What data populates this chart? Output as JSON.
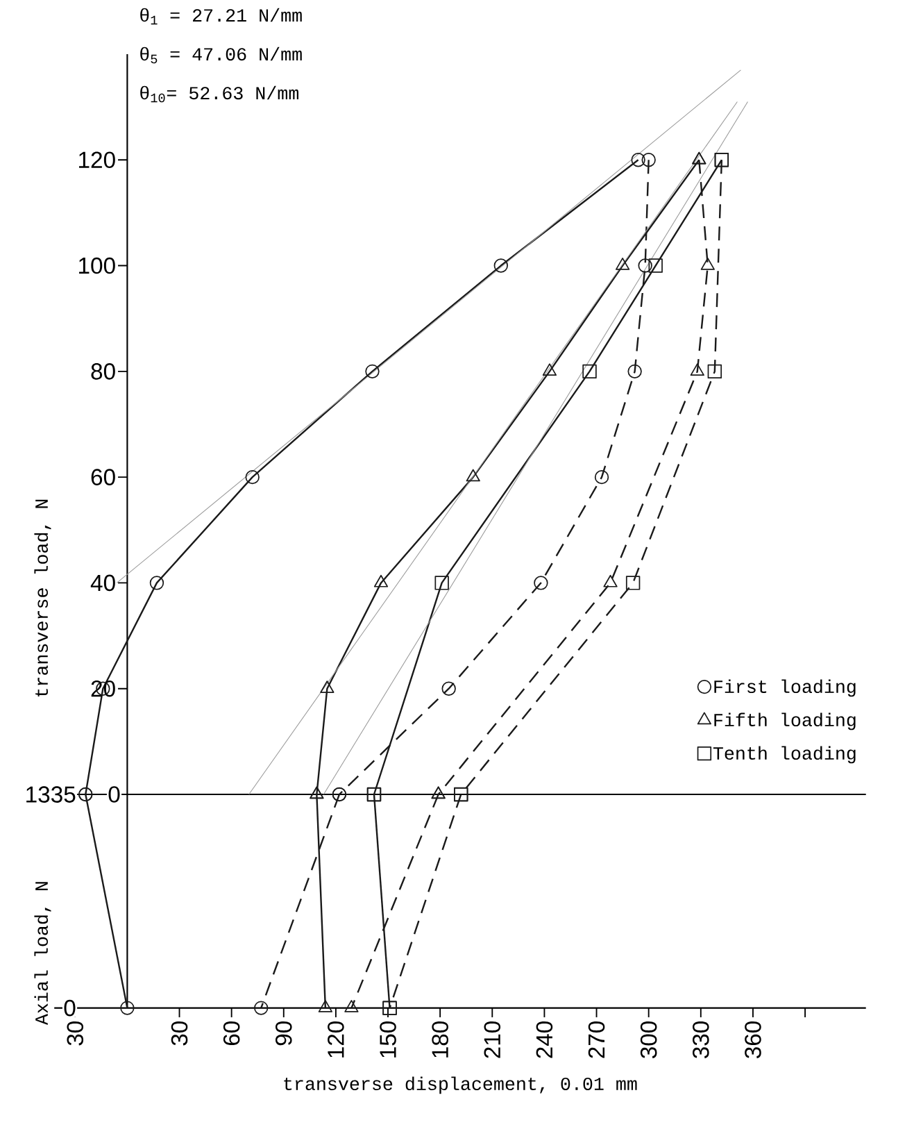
{
  "chart_data": [
    {
      "type": "line",
      "ylabel": "transverse load, N",
      "legend": "bottom right",
      "tick_labels": "y",
      "annotations": [
        "θ$_{1}$ = 27.21 N/mm",
        "θ$_{5}$ = 47.06 N/mm",
        "θ$_{10}$= 52.63 N/mm"
      ],
      "xlim": [
        -42,
        425
      ],
      "ylim": [
        0,
        140
      ],
      "yticks": [
        0,
        20,
        40,
        60,
        80,
        100,
        120
      ],
      "series": [
        {
          "name": "First loading",
          "color": "#1a1a1a",
          "marker": "circle",
          "line_style": "solid",
          "x": [
            -24,
            -14,
            17,
            72,
            141,
            215,
            294
          ],
          "values": [
            0,
            20,
            40,
            60,
            80,
            100,
            120
          ]
        },
        {
          "color": "#1a1a1a",
          "marker": "circle",
          "line_style": "dashed",
          "x": [
            300,
            298,
            292,
            273,
            238,
            185,
            122
          ],
          "values": [
            120,
            100,
            80,
            60,
            40,
            20,
            0
          ]
        },
        {
          "name": "Fifth loading",
          "color": "#1a1a1a",
          "marker": "triangle",
          "line_style": "solid",
          "x": [
            109,
            115,
            146,
            199,
            243,
            285,
            329
          ],
          "values": [
            0,
            20,
            40,
            60,
            80,
            100,
            120
          ]
        },
        {
          "color": "#1a1a1a",
          "marker": "triangle",
          "line_style": "dashed",
          "x": [
            329,
            334,
            328,
            278,
            179
          ],
          "values": [
            120,
            100,
            80,
            40,
            0
          ]
        },
        {
          "name": "Tenth loading",
          "color": "#1a1a1a",
          "marker": "square",
          "line_style": "solid",
          "x": [
            142,
            181,
            266,
            304,
            342
          ],
          "values": [
            0,
            40,
            80,
            100,
            120
          ]
        },
        {
          "color": "#1a1a1a",
          "marker": "square",
          "line_style": "dashed",
          "x": [
            342,
            338,
            291,
            192
          ],
          "values": [
            120,
            80,
            40,
            0
          ]
        },
        {
          "color": "#9a9a9a",
          "marker": "none",
          "line_style": "solid",
          "x": [
            -6,
            353
          ],
          "values": [
            40,
            137
          ]
        },
        {
          "color": "#9a9a9a",
          "marker": "none",
          "line_style": "solid",
          "x": [
            70,
            351
          ],
          "values": [
            0,
            131
          ]
        },
        {
          "color": "#9a9a9a",
          "marker": "none",
          "line_style": "solid",
          "x": [
            113,
            357
          ],
          "values": [
            0,
            131
          ]
        }
      ]
    },
    {
      "type": "line",
      "ylabel": "Axial load, N",
      "xlabel": "transverse displacement, 0.01 mm",
      "xlim": [
        -42,
        425
      ],
      "ylim": [
        0,
        1335
      ],
      "yticks": [
        0,
        1335
      ],
      "xticks": [
        {
          "value": -30,
          "label": "30"
        },
        30,
        60,
        90,
        120,
        150,
        180,
        210,
        240,
        270,
        300,
        330,
        360,
        {
          "value": 390,
          "label": null
        }
      ],
      "series": [
        {
          "color": "#1a1a1a",
          "marker": "circle",
          "line_style": "solid",
          "x": [
            -24,
            0
          ],
          "values": [
            1335,
            0
          ]
        },
        {
          "color": "#1a1a1a",
          "marker": "circle",
          "line_style": "dashed",
          "x": [
            122,
            77
          ],
          "values": [
            1335,
            0
          ]
        },
        {
          "color": "#1a1a1a",
          "marker": "triangle",
          "line_style": "solid",
          "x": [
            109,
            114
          ],
          "values": [
            1335,
            0
          ]
        },
        {
          "color": "#1a1a1a",
          "marker": "triangle",
          "line_style": "dashed",
          "x": [
            179,
            129
          ],
          "values": [
            1335,
            0
          ]
        },
        {
          "color": "#1a1a1a",
          "marker": "square",
          "line_style": "solid",
          "x": [
            142,
            151
          ],
          "values": [
            1335,
            0
          ]
        },
        {
          "color": "#1a1a1a",
          "marker": "square",
          "line_style": "dashed",
          "x": [
            192,
            151
          ],
          "values": [
            1335,
            0
          ]
        }
      ]
    }
  ]
}
